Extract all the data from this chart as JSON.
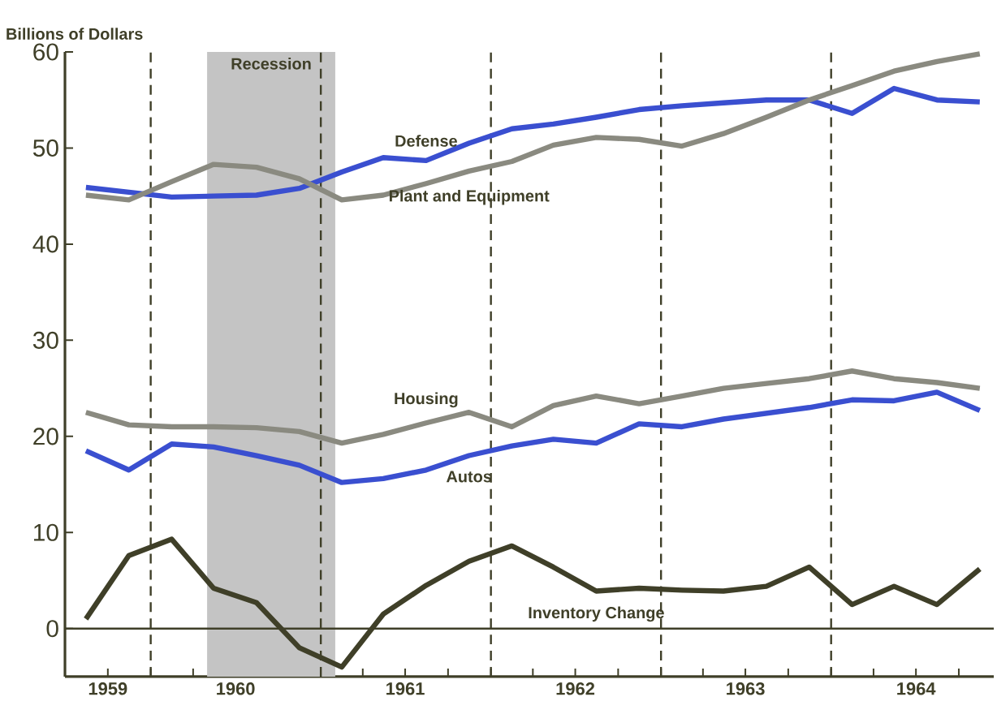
{
  "chart_data": {
    "type": "line",
    "ylabel": "Billions of Dollars",
    "x": [
      "1959-08-15",
      "1959-11-15",
      "1960-02-15",
      "1960-05-15",
      "1960-08-15",
      "1960-11-15",
      "1961-02-15",
      "1961-05-15",
      "1961-08-15",
      "1961-11-15",
      "1962-02-15",
      "1962-05-15",
      "1962-08-15",
      "1962-11-15",
      "1963-02-15",
      "1963-05-15",
      "1963-08-15",
      "1963-11-15",
      "1964-02-15",
      "1964-05-15",
      "1964-08-15",
      "1964-11-15"
    ],
    "series": [
      {
        "name": "Defense",
        "color": "#3a4fd0",
        "values": [
          45.9,
          45.4,
          44.9,
          45.0,
          45.1,
          45.8,
          47.5,
          49.0,
          48.7,
          50.5,
          52.0,
          52.5,
          53.2,
          54.0,
          54.4,
          54.7,
          55.0,
          55.0,
          53.6,
          56.2,
          55.0,
          54.8
        ]
      },
      {
        "name": "Plant and Equipment",
        "color": "#8a8a80",
        "values": [
          45.1,
          44.6,
          46.5,
          48.3,
          48.0,
          46.8,
          44.6,
          45.1,
          46.3,
          47.6,
          48.6,
          50.3,
          51.1,
          50.9,
          50.2,
          51.5,
          53.2,
          55.0,
          56.5,
          58.0,
          59.0,
          59.8
        ]
      },
      {
        "name": "Housing",
        "color": "#8a8a80",
        "values": [
          22.5,
          21.2,
          21.0,
          21.0,
          20.9,
          20.5,
          19.3,
          20.2,
          21.4,
          22.5,
          21.0,
          23.2,
          24.2,
          23.4,
          24.2,
          25.0,
          25.5,
          26.0,
          26.8,
          26.0,
          25.6,
          25.0
        ]
      },
      {
        "name": "Autos",
        "color": "#3a4fd0",
        "values": [
          18.5,
          16.5,
          19.2,
          18.9,
          18.0,
          17.0,
          15.2,
          15.6,
          16.5,
          18.0,
          19.0,
          19.7,
          19.3,
          21.3,
          21.0,
          21.8,
          22.4,
          23.0,
          23.8,
          23.7,
          24.6,
          22.7
        ]
      },
      {
        "name": "Inventory Change",
        "color": "#3f3f28",
        "values": [
          1.0,
          7.6,
          9.3,
          4.2,
          2.7,
          -2.0,
          -4.0,
          1.5,
          4.5,
          7.0,
          8.6,
          6.4,
          3.9,
          4.2,
          4.0,
          3.9,
          4.4,
          6.4,
          2.5,
          4.4,
          2.5,
          6.2
        ]
      }
    ],
    "xlim": [
      "1959-07-01",
      "1964-12-15"
    ],
    "xticks": [
      {
        "value": "1959-10-01",
        "label": "1959"
      },
      {
        "value": "1960-01-01",
        "label": null
      },
      {
        "value": "1960-04-01",
        "label": null
      },
      {
        "value": "1960-07-01",
        "label": "1960"
      },
      {
        "value": "1960-10-01",
        "label": null
      },
      {
        "value": "1961-01-01",
        "label": null
      },
      {
        "value": "1961-04-01",
        "label": null
      },
      {
        "value": "1961-07-01",
        "label": "1961"
      },
      {
        "value": "1961-10-01",
        "label": null
      },
      {
        "value": "1962-01-01",
        "label": null
      },
      {
        "value": "1962-04-01",
        "label": null
      },
      {
        "value": "1962-07-01",
        "label": "1962"
      },
      {
        "value": "1962-10-01",
        "label": null
      },
      {
        "value": "1963-01-01",
        "label": null
      },
      {
        "value": "1963-04-01",
        "label": null
      },
      {
        "value": "1963-07-01",
        "label": "1963"
      },
      {
        "value": "1963-10-01",
        "label": null
      },
      {
        "value": "1964-01-01",
        "label": null
      },
      {
        "value": "1964-04-01",
        "label": null
      },
      {
        "value": "1964-07-01",
        "label": "1964"
      },
      {
        "value": "1964-10-01",
        "label": null
      }
    ],
    "ylim": [
      -5,
      60
    ],
    "yticks": [
      0,
      10,
      20,
      30,
      40,
      50,
      60
    ],
    "bands": [
      {
        "axis": "x",
        "from": "1960-05-01",
        "to": "1961-02-01",
        "label": "Recession",
        "color": "#c4c4c4"
      }
    ],
    "ref_lines": [
      {
        "axis": "y",
        "value": 0,
        "color": "#3f3f28"
      },
      {
        "axis": "x",
        "value": "1960-01-01",
        "line_style": "dashed",
        "color": "#3f3f28"
      },
      {
        "axis": "x",
        "value": "1961-01-01",
        "line_style": "dashed",
        "color": "#3f3f28"
      },
      {
        "axis": "x",
        "value": "1962-01-01",
        "line_style": "dashed",
        "color": "#3f3f28"
      },
      {
        "axis": "x",
        "value": "1963-01-01",
        "line_style": "dashed",
        "color": "#3f3f28"
      },
      {
        "axis": "x",
        "value": "1964-01-01",
        "line_style": "dashed",
        "color": "#3f3f28"
      }
    ],
    "grid": false,
    "marker": "none",
    "line_style": "solid"
  }
}
